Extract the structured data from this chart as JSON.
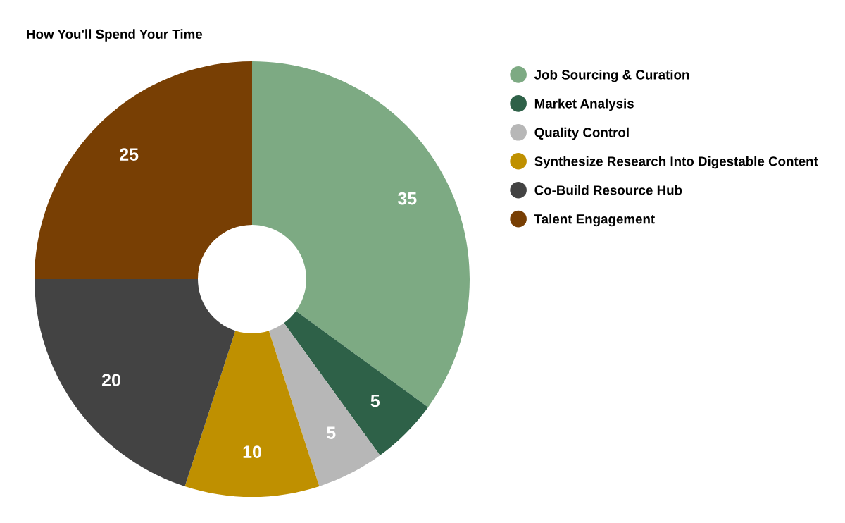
{
  "chart_data": {
    "type": "donut",
    "title": "How You'll Spend Your Time",
    "categories": [
      "Job Sourcing & Curation",
      "Market Analysis",
      "Quality Control",
      "Synthesize Research Into Digestable Content",
      "Co-Build Resource Hub",
      "Talent Engagement"
    ],
    "values": [
      35,
      5,
      5,
      10,
      20,
      25
    ],
    "colors": [
      "#7daa83",
      "#2e6148",
      "#b7b7b7",
      "#bf9000",
      "#434343",
      "#783f04"
    ],
    "data_labels": true,
    "legend": "right"
  }
}
